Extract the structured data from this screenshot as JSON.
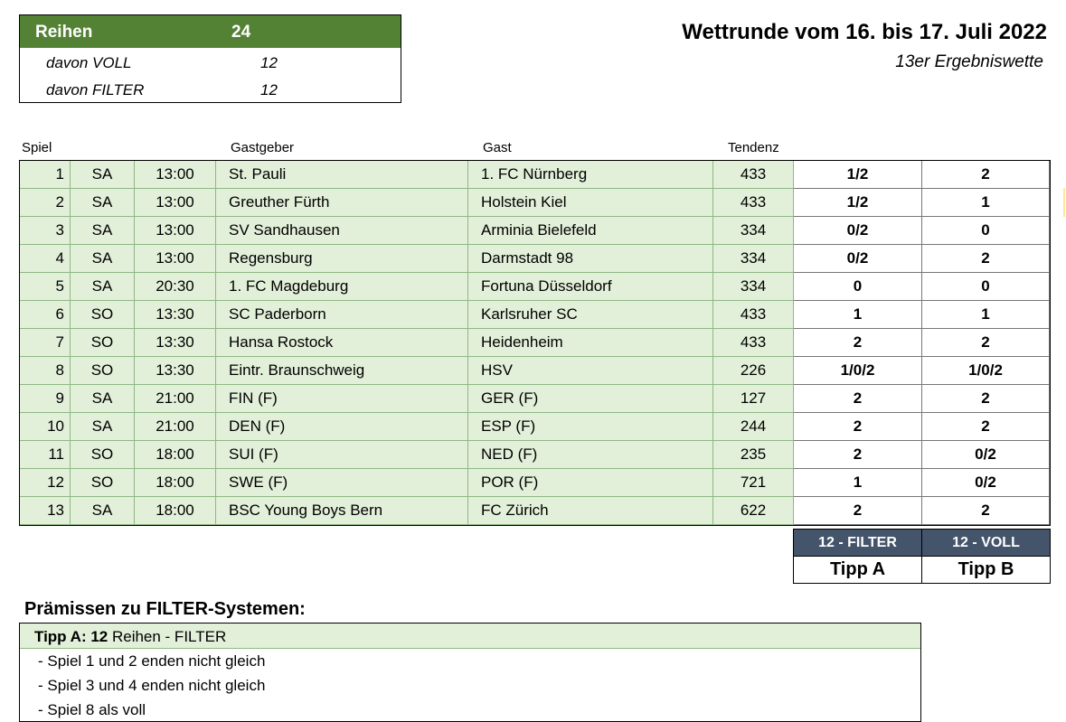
{
  "summary": {
    "header_label": "Reihen",
    "header_value": "24",
    "rows": [
      {
        "label": "davon VOLL",
        "value": "12"
      },
      {
        "label": "davon FILTER",
        "value": "12"
      }
    ]
  },
  "title": "Wettrunde vom 16. bis 17. Juli 2022",
  "subtitle": "13er Ergebniswette",
  "columns": {
    "spiel": "Spiel",
    "gastgeber": "Gastgeber",
    "gast": "Gast",
    "tendenz": "Tendenz"
  },
  "games": [
    {
      "nr": "1",
      "day": "SA",
      "time": "13:00",
      "home": "St. Pauli",
      "away": "1. FC Nürnberg",
      "tendenz": "433",
      "tipp_a": "1/2",
      "tipp_b": "2"
    },
    {
      "nr": "2",
      "day": "SA",
      "time": "13:00",
      "home": "Greuther Fürth",
      "away": "Holstein Kiel",
      "tendenz": "433",
      "tipp_a": "1/2",
      "tipp_b": "1"
    },
    {
      "nr": "3",
      "day": "SA",
      "time": "13:00",
      "home": "SV Sandhausen",
      "away": "Arminia Bielefeld",
      "tendenz": "334",
      "tipp_a": "0/2",
      "tipp_b": "0"
    },
    {
      "nr": "4",
      "day": "SA",
      "time": "13:00",
      "home": "Regensburg",
      "away": "Darmstadt 98",
      "tendenz": "334",
      "tipp_a": "0/2",
      "tipp_b": "2"
    },
    {
      "nr": "5",
      "day": "SA",
      "time": "20:30",
      "home": "1. FC Magdeburg",
      "away": "Fortuna Düsseldorf",
      "tendenz": "334",
      "tipp_a": "0",
      "tipp_b": "0"
    },
    {
      "nr": "6",
      "day": "SO",
      "time": "13:30",
      "home": "SC Paderborn",
      "away": "Karlsruher SC",
      "tendenz": "433",
      "tipp_a": "1",
      "tipp_b": "1"
    },
    {
      "nr": "7",
      "day": "SO",
      "time": "13:30",
      "home": "Hansa Rostock",
      "away": "Heidenheim",
      "tendenz": "433",
      "tipp_a": "2",
      "tipp_b": "2"
    },
    {
      "nr": "8",
      "day": "SO",
      "time": "13:30",
      "home": "Eintr. Braunschweig",
      "away": "HSV",
      "tendenz": "226",
      "tipp_a": "1/0/2",
      "tipp_b": "1/0/2"
    },
    {
      "nr": "9",
      "day": "SA",
      "time": "21:00",
      "home": "FIN (F)",
      "away": "GER (F)",
      "tendenz": "127",
      "tipp_a": "2",
      "tipp_b": "2"
    },
    {
      "nr": "10",
      "day": "SA",
      "time": "21:00",
      "home": "DEN (F)",
      "away": "ESP (F)",
      "tendenz": "244",
      "tipp_a": "2",
      "tipp_b": "2"
    },
    {
      "nr": "11",
      "day": "SO",
      "time": "18:00",
      "home": "SUI (F)",
      "away": "NED (F)",
      "tendenz": "235",
      "tipp_a": "2",
      "tipp_b": "0/2"
    },
    {
      "nr": "12",
      "day": "SO",
      "time": "18:00",
      "home": "SWE (F)",
      "away": "POR (F)",
      "tendenz": "721",
      "tipp_a": "1",
      "tipp_b": "0/2"
    },
    {
      "nr": "13",
      "day": "SA",
      "time": "18:00",
      "home": "BSC Young Boys Bern",
      "away": "FC Zürich",
      "tendenz": "622",
      "tipp_a": "2",
      "tipp_b": "2"
    }
  ],
  "tipp_footer": {
    "a_system": "12 - FILTER",
    "b_system": "12 - VOLL",
    "a_label": "Tipp A",
    "b_label": "Tipp B"
  },
  "premises": {
    "title": "Prämissen zu FILTER-Systemen:",
    "header_bold": "Tipp A: 12",
    "header_rest": " Reihen - FILTER",
    "items": [
      "- Spiel 1 und 2 enden nicht gleich",
      "- Spiel 3 und 4 enden nicht gleich",
      "- Spiel 8 als voll"
    ]
  },
  "colors": {
    "summary_header": "#548235",
    "row_fill": "#e2efd9",
    "footer_header": "#44546a"
  }
}
